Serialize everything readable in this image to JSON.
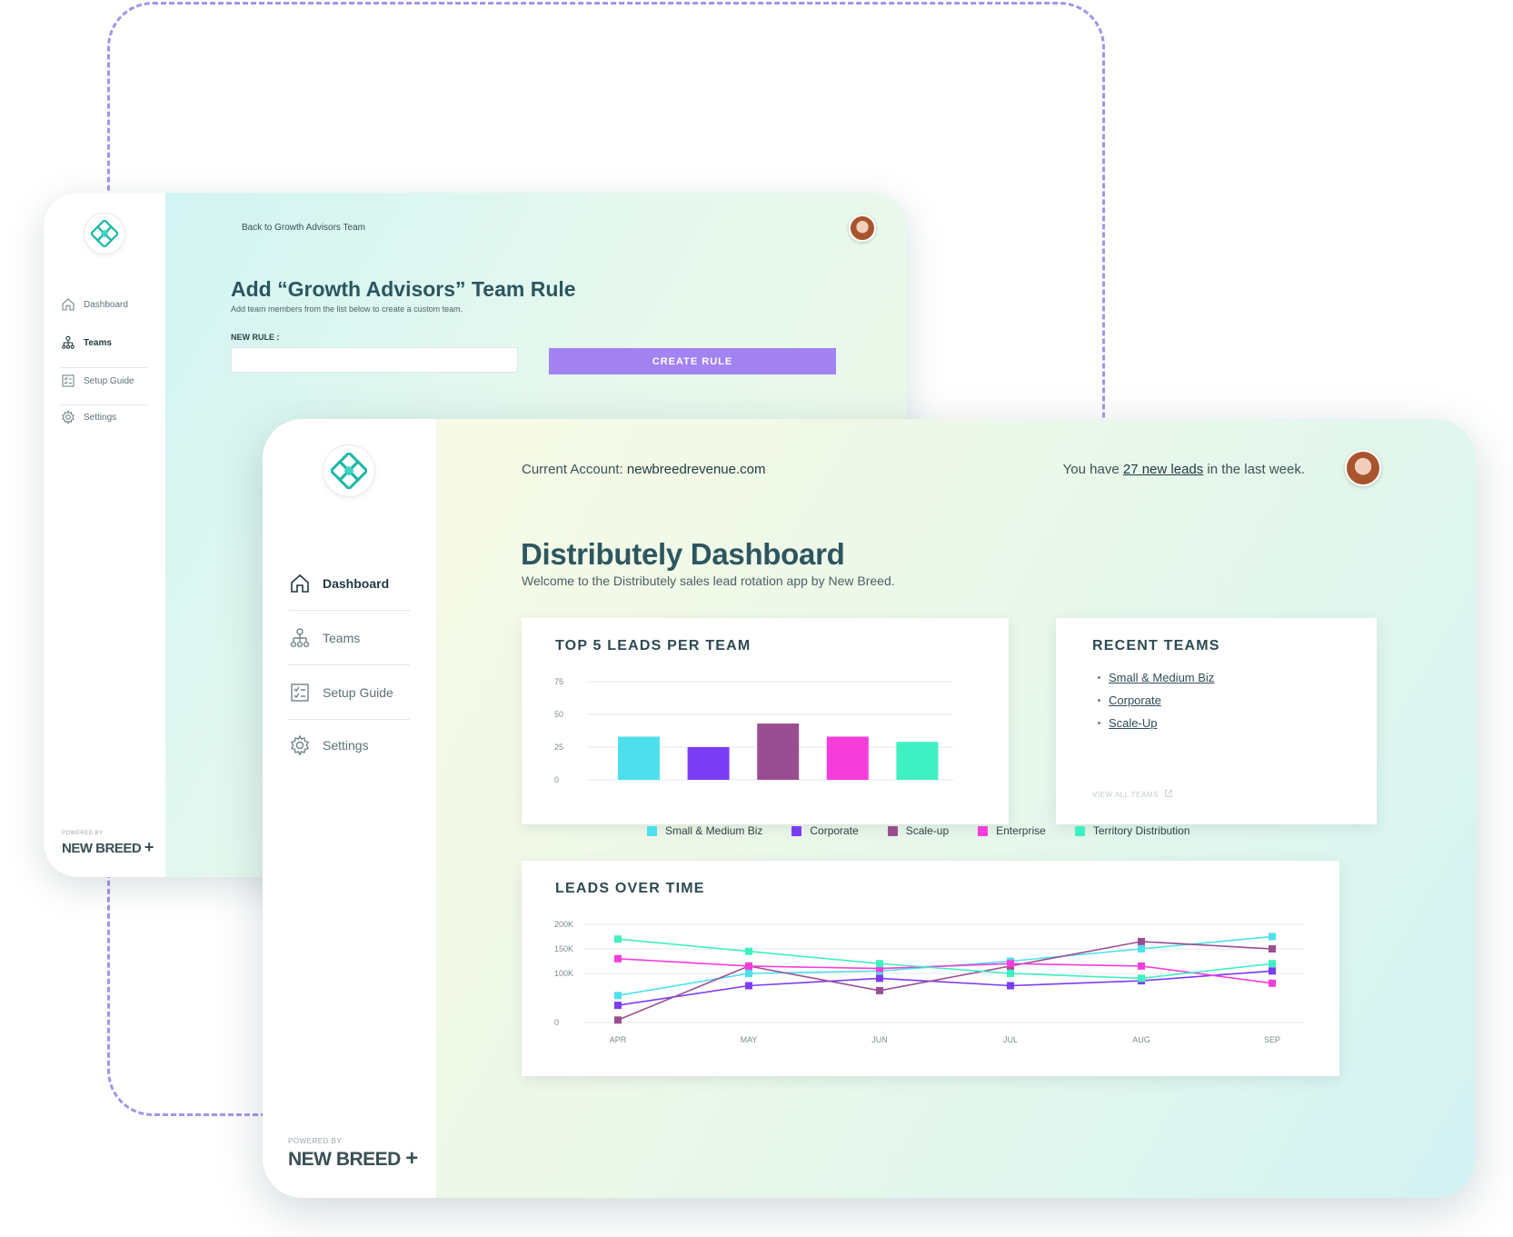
{
  "colors": {
    "accent_purple": "#a382f2",
    "title_teal": "#2d5661",
    "series": [
      "#4de0ec",
      "#7b3cf5",
      "#9a4e92",
      "#f53ddc",
      "#3ff0c2"
    ]
  },
  "back_window": {
    "nav": [
      {
        "label": "Dashboard",
        "icon": "home-icon"
      },
      {
        "label": "Teams",
        "icon": "teams-icon"
      },
      {
        "label": "Setup Guide",
        "icon": "checklist-icon"
      },
      {
        "label": "Settings",
        "icon": "gear-icon"
      }
    ],
    "active_nav": "Teams",
    "powered_by": "POWERED BY",
    "brand": "NEW BREED",
    "back_link": "Back to Growth Advisors Team",
    "title": "Add “Growth Advisors” Team Rule",
    "subtitle": "Add team members from the list below to create a custom team.",
    "new_rule_label": "NEW RULE :",
    "new_rule_value": "",
    "create_button": "CREATE RULE"
  },
  "front_window": {
    "nav": [
      {
        "label": "Dashboard",
        "icon": "home-icon"
      },
      {
        "label": "Teams",
        "icon": "teams-icon"
      },
      {
        "label": "Setup Guide",
        "icon": "checklist-icon"
      },
      {
        "label": "Settings",
        "icon": "gear-icon"
      }
    ],
    "active_nav": "Dashboard",
    "powered_by": "POWERED BY",
    "brand": "NEW BREED",
    "account_prefix": "Current Account: ",
    "account": "newbreedrevenue.com",
    "leads_prefix": "You have ",
    "leads_link": "27 new leads",
    "leads_suffix": " in the last week.",
    "title": "Distributely Dashboard",
    "subtitle": "Welcome to the Distributely sales lead rotation app by New Breed.",
    "recent_teams": {
      "title": "RECENT TEAMS",
      "items": [
        "Small & Medium Biz",
        "Corporate",
        "Scale-Up"
      ],
      "view_all": "VIEW ALL TEAMS"
    },
    "legend": [
      "Small & Medium Biz",
      "Corporate",
      "Scale-up",
      "Enterprise",
      "Territory Distribution"
    ]
  },
  "chart_data": [
    {
      "type": "bar",
      "title": "TOP 5 LEADS PER TEAM",
      "categories": [
        "Small & Medium Biz",
        "Corporate",
        "Scale-up",
        "Enterprise",
        "Territory Distribution"
      ],
      "values": [
        33,
        25,
        43,
        33,
        29
      ],
      "ylim": [
        0,
        75
      ],
      "yticks": [
        0,
        25,
        50,
        75
      ],
      "grid": true
    },
    {
      "type": "line",
      "title": "LEADS OVER TIME",
      "x": [
        "APR",
        "MAY",
        "JUN",
        "JUL",
        "AUG",
        "SEP"
      ],
      "ylim": [
        0,
        200000
      ],
      "yticks": [
        "0",
        "100K",
        "150K",
        "200K"
      ],
      "ytick_values": [
        0,
        100000,
        150000,
        200000
      ],
      "grid": true,
      "series": [
        {
          "name": "Small & Medium Biz",
          "values": [
            55000,
            100000,
            105000,
            125000,
            150000,
            175000
          ]
        },
        {
          "name": "Corporate",
          "values": [
            35000,
            75000,
            90000,
            75000,
            85000,
            105000
          ]
        },
        {
          "name": "Scale-up",
          "values": [
            5000,
            115000,
            65000,
            115000,
            165000,
            150000
          ]
        },
        {
          "name": "Enterprise",
          "values": [
            130000,
            115000,
            110000,
            120000,
            115000,
            80000
          ]
        },
        {
          "name": "Territory Distribution",
          "values": [
            170000,
            145000,
            120000,
            100000,
            90000,
            120000
          ]
        }
      ]
    }
  ]
}
